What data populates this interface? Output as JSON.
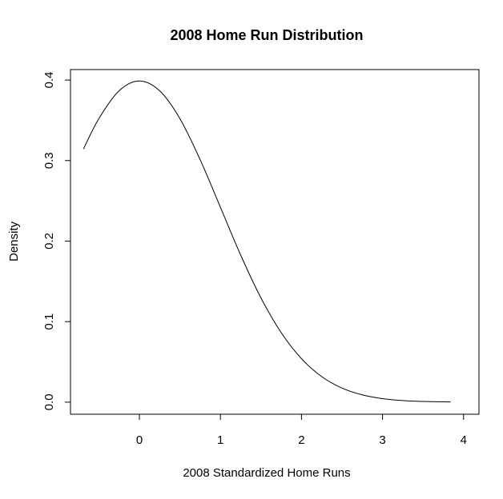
{
  "chart_data": {
    "type": "line",
    "title": "2008 Home Run Distribution",
    "x_label": "2008 Standardized Home Runs",
    "y_label": "Density",
    "x": [
      -0.69,
      -0.5,
      -0.25,
      0,
      0.25,
      0.5,
      0.75,
      1,
      1.25,
      1.5,
      1.75,
      2,
      2.25,
      2.5,
      2.75,
      3,
      3.25,
      3.5,
      3.84
    ],
    "values": [
      0.3144,
      0.3521,
      0.3867,
      0.3989,
      0.3867,
      0.3521,
      0.3011,
      0.242,
      0.1826,
      0.1295,
      0.0863,
      0.054,
      0.0317,
      0.0175,
      0.0091,
      0.0044,
      0.002,
      0.0009,
      0.0003
    ],
    "color": "#000000",
    "xlim": [
      -0.85,
      4.19
    ],
    "ylim": [
      -0.015,
      0.413
    ],
    "xticks": [
      0,
      1,
      2,
      3,
      4
    ],
    "yticks": [
      {
        "value": 0,
        "label": "0.0"
      },
      0.1,
      0.2,
      0.3,
      0.4
    ]
  }
}
